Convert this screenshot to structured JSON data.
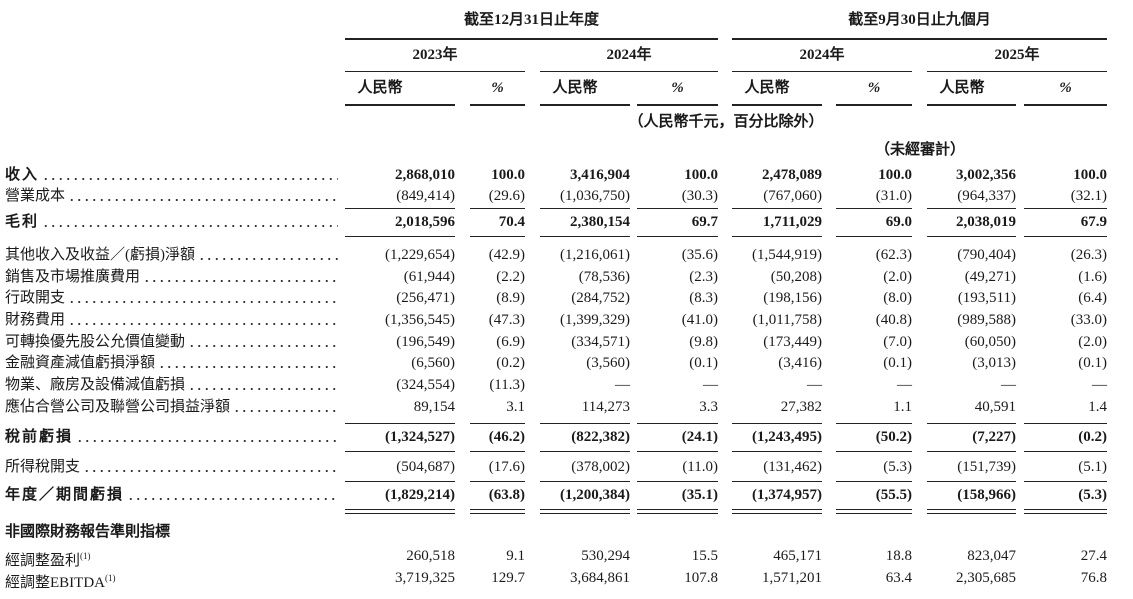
{
  "header": {
    "period_groups": [
      "截至12月31日止年度",
      "截至9月30日止九個月"
    ],
    "years": [
      "2023年",
      "2024年",
      "2024年",
      "2025年"
    ],
    "columns": [
      "人民幣",
      "%",
      "人民幣",
      "%",
      "人民幣",
      "%",
      "人民幣",
      "%"
    ],
    "unit_note": "（人民幣千元，百分比除外）",
    "audit_note": "（未經審計）"
  },
  "rows": [
    {
      "label": "收入",
      "values": [
        "2,868,010",
        "100.0",
        "3,416,904",
        "100.0",
        "2,478,089",
        "100.0",
        "3,002,356",
        "100.0"
      ]
    },
    {
      "label": "營業成本",
      "values": [
        "(849,414)",
        "(29.6)",
        "(1,036,750)",
        "(30.3)",
        "(767,060)",
        "(31.0)",
        "(964,337)",
        "(32.1)"
      ]
    },
    {
      "label": "毛利",
      "values": [
        "2,018,596",
        "70.4",
        "2,380,154",
        "69.7",
        "1,711,029",
        "69.0",
        "2,038,019",
        "67.9"
      ]
    },
    {
      "label": "其他收入及收益／(虧損)淨額",
      "values": [
        "(1,229,654)",
        "(42.9)",
        "(1,216,061)",
        "(35.6)",
        "(1,544,919)",
        "(62.3)",
        "(790,404)",
        "(26.3)"
      ]
    },
    {
      "label": "銷售及市場推廣費用",
      "values": [
        "(61,944)",
        "(2.2)",
        "(78,536)",
        "(2.3)",
        "(50,208)",
        "(2.0)",
        "(49,271)",
        "(1.6)"
      ]
    },
    {
      "label": "行政開支",
      "values": [
        "(256,471)",
        "(8.9)",
        "(284,752)",
        "(8.3)",
        "(198,156)",
        "(8.0)",
        "(193,511)",
        "(6.4)"
      ]
    },
    {
      "label": "財務費用",
      "values": [
        "(1,356,545)",
        "(47.3)",
        "(1,399,329)",
        "(41.0)",
        "(1,011,758)",
        "(40.8)",
        "(989,588)",
        "(33.0)"
      ]
    },
    {
      "label": "可轉換優先股公允價值變動",
      "values": [
        "(196,549)",
        "(6.9)",
        "(334,571)",
        "(9.8)",
        "(173,449)",
        "(7.0)",
        "(60,050)",
        "(2.0)"
      ]
    },
    {
      "label": "金融資產減值虧損淨額",
      "values": [
        "(6,560)",
        "(0.2)",
        "(3,560)",
        "(0.1)",
        "(3,416)",
        "(0.1)",
        "(3,013)",
        "(0.1)"
      ]
    },
    {
      "label": "物業、廠房及設備減值虧損",
      "values": [
        "(324,554)",
        "(11.3)",
        "—",
        "—",
        "—",
        "—",
        "—",
        "—"
      ]
    },
    {
      "label": "應佔合營公司及聯營公司損益淨額",
      "values": [
        "89,154",
        "3.1",
        "114,273",
        "3.3",
        "27,382",
        "1.1",
        "40,591",
        "1.4"
      ]
    },
    {
      "label": "稅前虧損",
      "values": [
        "(1,324,527)",
        "(46.2)",
        "(822,382)",
        "(24.1)",
        "(1,243,495)",
        "(50.2)",
        "(7,227)",
        "(0.2)"
      ]
    },
    {
      "label": "所得稅開支",
      "values": [
        "(504,687)",
        "(17.6)",
        "(378,002)",
        "(11.0)",
        "(131,462)",
        "(5.3)",
        "(151,739)",
        "(5.1)"
      ]
    },
    {
      "label": "年度／期間虧損",
      "values": [
        "(1,829,214)",
        "(63.8)",
        "(1,200,384)",
        "(35.1)",
        "(1,374,957)",
        "(55.5)",
        "(158,966)",
        "(5.3)"
      ]
    },
    {
      "label": "非國際財務報告準則指標"
    },
    {
      "label": "經調整盈利",
      "note": "(1)",
      "values": [
        "260,518",
        "9.1",
        "530,294",
        "15.5",
        "465,171",
        "18.8",
        "823,047",
        "27.4"
      ]
    },
    {
      "label": "經調整EBITDA",
      "note": "(1)",
      "values": [
        "3,719,325",
        "129.7",
        "3,684,861",
        "107.8",
        "1,571,201",
        "63.4",
        "2,305,685",
        "76.8"
      ]
    }
  ]
}
